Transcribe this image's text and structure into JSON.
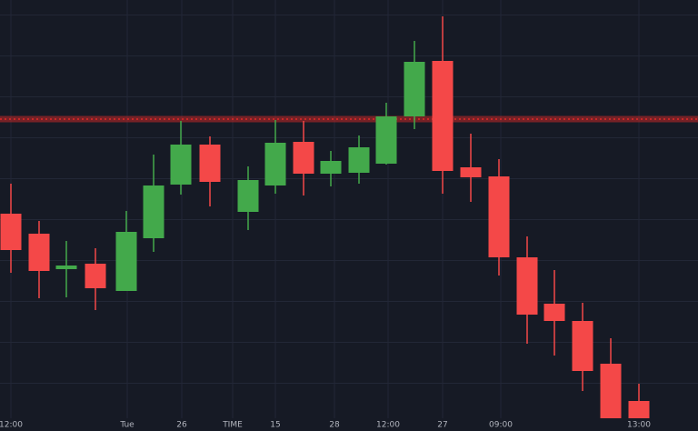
{
  "chart_data": {
    "type": "candlestick",
    "x": [
      12,
      43,
      73,
      105,
      139,
      169,
      199,
      231,
      273,
      303,
      334,
      364,
      395,
      425,
      456,
      487,
      518,
      549,
      580,
      610,
      641,
      672,
      703
    ],
    "open": [
      239,
      217,
      178,
      184,
      154,
      212,
      271,
      315,
      241,
      270,
      318,
      283,
      284,
      294,
      346,
      407,
      290,
      280,
      191,
      140,
      121,
      74,
      33
    ],
    "high": [
      272,
      231,
      209,
      201,
      242,
      304,
      341,
      324,
      291,
      342,
      341,
      308,
      325,
      361,
      429,
      456,
      327,
      299,
      214,
      177,
      141,
      102,
      52
    ],
    "low": [
      174,
      146,
      147,
      133,
      154,
      197,
      260,
      247,
      221,
      261,
      259,
      269,
      272,
      293,
      332,
      261,
      252,
      171,
      96,
      83,
      44,
      14,
      14
    ],
    "close": [
      199,
      176,
      182,
      157,
      219,
      270,
      315,
      274,
      276,
      317,
      283,
      297,
      312,
      346,
      406,
      286,
      279,
      191,
      128,
      121,
      66,
      14,
      14
    ],
    "up_color": "#43a94b",
    "down_color": "#f44848",
    "xlim": [
      0,
      768
    ],
    "ylim": [
      0,
      474
    ],
    "xticks": [
      {
        "value": 12,
        "label": "12:00"
      },
      {
        "value": 140,
        "label": "Tue"
      },
      {
        "value": 200,
        "label": "26"
      },
      {
        "value": 256,
        "label": "TIME"
      },
      {
        "value": 303,
        "label": "15"
      },
      {
        "value": 368,
        "label": "28"
      },
      {
        "value": 427,
        "label": "12:00"
      },
      {
        "value": 487,
        "label": "27"
      },
      {
        "value": 551,
        "label": "09:00"
      },
      {
        "value": 703,
        "label": "13:00"
      }
    ],
    "grid": true,
    "hline": {
      "value": 343,
      "color": "#c62828"
    }
  }
}
